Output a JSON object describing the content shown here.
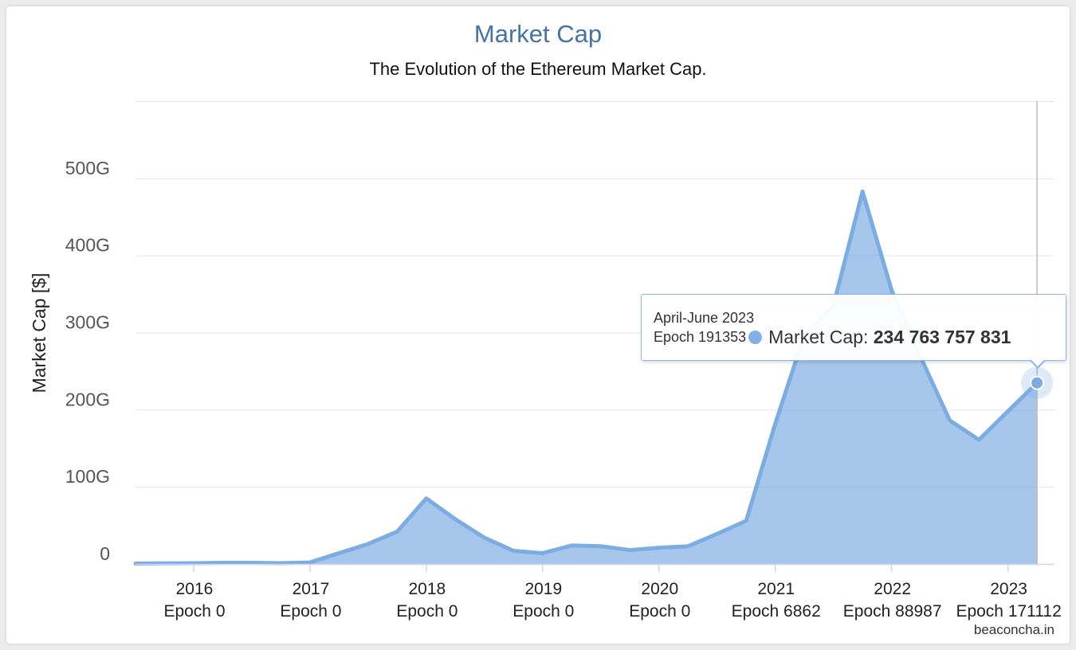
{
  "chart_data": {
    "type": "area",
    "title": "Market Cap",
    "subtitle": "The Evolution of the Ethereum Market Cap.",
    "ylabel": "Market Cap [$]",
    "xlabel": "",
    "ylim": [
      0,
      600
    ],
    "y_unit": "G",
    "yticks": [
      "0",
      "100G",
      "200G",
      "300G",
      "400G",
      "500G"
    ],
    "xticks": [
      {
        "x": 2016.0,
        "year": "2016",
        "epoch": "Epoch 0"
      },
      {
        "x": 2017.0,
        "year": "2017",
        "epoch": "Epoch 0"
      },
      {
        "x": 2018.0,
        "year": "2018",
        "epoch": "Epoch 0"
      },
      {
        "x": 2019.0,
        "year": "2019",
        "epoch": "Epoch 0"
      },
      {
        "x": 2020.0,
        "year": "2020",
        "epoch": "Epoch 0"
      },
      {
        "x": 2021.0,
        "year": "2021",
        "epoch": "Epoch 6862"
      },
      {
        "x": 2022.0,
        "year": "2022",
        "epoch": "Epoch 88987"
      },
      {
        "x": 2023.0,
        "year": "2023",
        "epoch": "Epoch 171112"
      }
    ],
    "grid": true,
    "color": "#7cade2",
    "series": [
      {
        "x": [
          2015.5,
          2015.75,
          2016.0,
          2016.25,
          2016.5,
          2016.75,
          2017.0,
          2017.25,
          2017.5,
          2017.75,
          2018.0,
          2018.25,
          2018.5,
          2018.75,
          2019.0,
          2019.25,
          2019.5,
          2019.75,
          2020.0,
          2020.25,
          2020.5,
          2020.75,
          2021.0,
          2021.25,
          2021.5,
          2021.75,
          2022.0,
          2022.25,
          2022.5,
          2022.75,
          2023.0,
          2023.25
        ],
        "values": [
          0.5,
          0.8,
          1,
          1.5,
          1.5,
          1,
          2,
          14,
          26,
          42,
          85,
          58,
          34,
          17,
          14,
          24,
          23,
          18,
          21,
          23,
          39,
          56,
          182,
          297,
          335,
          483,
          355,
          268,
          186,
          161,
          198,
          234.8
        ]
      }
    ]
  },
  "tooltip": {
    "period": "April-June 2023",
    "epoch": "Epoch 191353",
    "series_name": "Market Cap",
    "value": "234 763 757 831"
  },
  "credits": "beaconcha.in"
}
